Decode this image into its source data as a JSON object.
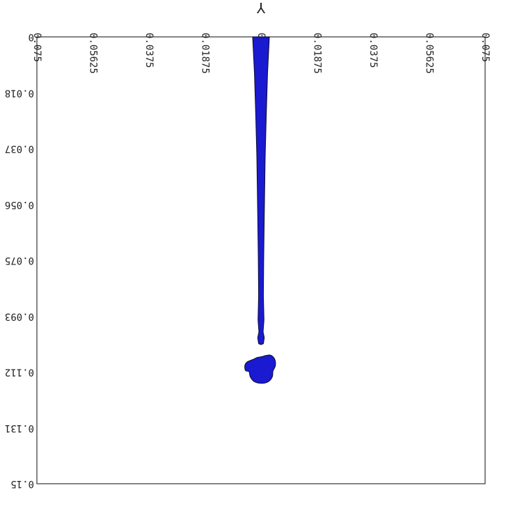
{
  "chart_data": {
    "type": "area",
    "title": "",
    "xlabel": "Y",
    "ylabel": "",
    "xlim": [
      -0.075,
      0.075
    ],
    "ylim": [
      0,
      0.15
    ],
    "y_axis_direction": "downward",
    "text_orientation": "upside-down",
    "grid": false,
    "x_tick_labels": [
      "0.075",
      "0.05625",
      "0.0375",
      "0.01875",
      "0",
      "0.01875",
      "0.0375",
      "0.05625",
      "0.075"
    ],
    "y_tick_labels": [
      "0",
      "0.018",
      "0.037",
      "0.056",
      "0.075",
      "0.093",
      "0.112",
      "0.131",
      "0.15"
    ],
    "fill_color": "#1a1ad0",
    "outline_color": "#0a0a2a",
    "series": [
      {
        "type": "filament",
        "points": [
          [
            -0.0028,
            0.0
          ],
          [
            -0.0022,
            0.012
          ],
          [
            -0.0018,
            0.025
          ],
          [
            -0.0014,
            0.04
          ],
          [
            -0.0011,
            0.06
          ],
          [
            -0.0009,
            0.075
          ],
          [
            -0.0008,
            0.087
          ],
          [
            -0.001,
            0.095
          ],
          [
            -0.0007,
            0.099
          ],
          [
            -0.0011,
            0.101
          ],
          [
            -0.0008,
            0.103
          ],
          [
            0.0,
            0.1033
          ],
          [
            0.0008,
            0.103
          ],
          [
            0.0011,
            0.101
          ],
          [
            0.0007,
            0.099
          ],
          [
            0.001,
            0.095
          ],
          [
            0.0008,
            0.087
          ],
          [
            0.0009,
            0.075
          ],
          [
            0.0011,
            0.06
          ],
          [
            0.0014,
            0.04
          ],
          [
            0.0018,
            0.025
          ],
          [
            0.0022,
            0.012
          ],
          [
            0.0028,
            0.0
          ]
        ]
      },
      {
        "type": "droplet",
        "points": [
          [
            0.0,
            0.1074
          ],
          [
            0.003,
            0.1068
          ],
          [
            0.0046,
            0.1082
          ],
          [
            0.0048,
            0.1104
          ],
          [
            0.004,
            0.1122
          ],
          [
            0.0038,
            0.1141
          ],
          [
            0.0024,
            0.1158
          ],
          [
            0.0,
            0.1163
          ],
          [
            -0.0023,
            0.1157
          ],
          [
            -0.0036,
            0.1141
          ],
          [
            -0.004,
            0.1124
          ],
          [
            -0.0052,
            0.112
          ],
          [
            -0.0054,
            0.1103
          ],
          [
            -0.0046,
            0.1091
          ],
          [
            -0.0025,
            0.1082
          ],
          [
            -0.0012,
            0.1076
          ]
        ]
      }
    ]
  }
}
